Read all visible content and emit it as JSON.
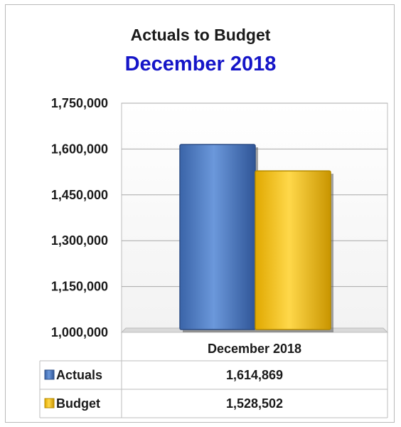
{
  "chart_data": {
    "type": "bar",
    "title": "Actuals to Budget",
    "subtitle": "December 2018",
    "categories": [
      "December 2018"
    ],
    "series": [
      {
        "name": "Actuals",
        "values": [
          1614869
        ],
        "display": "1,614,869",
        "color": "#4f7fc6"
      },
      {
        "name": "Budget",
        "values": [
          1528502
        ],
        "display": "1,528,502",
        "color": "#ffc000"
      }
    ],
    "ylim": [
      1000000,
      1750000
    ],
    "yticks": [
      1000000,
      1150000,
      1300000,
      1450000,
      1600000,
      1750000
    ],
    "ytick_labels": [
      "1,000,000",
      "1,150,000",
      "1,300,000",
      "1,450,000",
      "1,600,000",
      "1,750,000"
    ],
    "grid": true,
    "legend": "data-table",
    "data_table": true
  }
}
